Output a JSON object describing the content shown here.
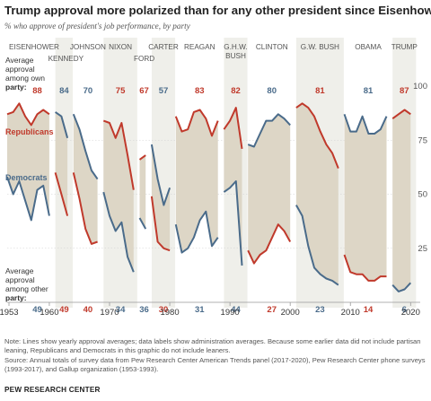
{
  "title": "Trump approval more polarized than for any other president since Eisenhower",
  "subtitle": "% who approve of president's job performance, by party",
  "legend": {
    "own_party_label": [
      "Average",
      "approval",
      "among own",
      "party:"
    ],
    "other_party_label": [
      "Average",
      "approval",
      "among other",
      "party:"
    ],
    "republicans": "Republicans",
    "democrats": "Democrats"
  },
  "colors": {
    "republicans": "#c0392b",
    "democrats": "#4a6b8a",
    "fill": "#ddd6c6",
    "band": "#efefea"
  },
  "chart_data": {
    "type": "line",
    "xlim": [
      1953,
      2020
    ],
    "ylim": [
      0,
      100
    ],
    "y_ticks": [
      0,
      25,
      50,
      75,
      100
    ],
    "x_ticks": [
      1953,
      1960,
      1970,
      1980,
      1990,
      2000,
      2010,
      2020
    ],
    "series_names": [
      "Republicans",
      "Democrats"
    ],
    "presidents": [
      {
        "name": "EISENHOWER",
        "start": 1953,
        "end": 1960.9,
        "band": false,
        "own_avg": "88",
        "other_avg": "49",
        "own_party": "R",
        "rep": [
          [
            1953,
            87
          ],
          [
            1954,
            88
          ],
          [
            1955,
            92
          ],
          [
            1956,
            86
          ],
          [
            1957,
            82
          ],
          [
            1958,
            87
          ],
          [
            1959,
            89
          ],
          [
            1960,
            87
          ]
        ],
        "dem": [
          [
            1953,
            58
          ],
          [
            1954,
            50
          ],
          [
            1955,
            56
          ],
          [
            1956,
            47
          ],
          [
            1957,
            38
          ],
          [
            1958,
            52
          ],
          [
            1959,
            54
          ],
          [
            1960,
            40
          ]
        ]
      },
      {
        "name": "KENNEDY",
        "start": 1961,
        "end": 1963.9,
        "band": true,
        "own_avg": "84",
        "other_avg": "49",
        "own_party": "D",
        "rep": [
          [
            1961,
            60
          ],
          [
            1962,
            50
          ],
          [
            1963,
            40
          ]
        ],
        "dem": [
          [
            1961,
            88
          ],
          [
            1962,
            86
          ],
          [
            1963,
            76
          ]
        ]
      },
      {
        "name": "JOHNSON",
        "start": 1963.9,
        "end": 1968.9,
        "band": false,
        "own_avg": "70",
        "other_avg": "40",
        "own_party": "D",
        "rep": [
          [
            1964,
            60
          ],
          [
            1965,
            48
          ],
          [
            1966,
            34
          ],
          [
            1967,
            27
          ],
          [
            1968,
            28
          ]
        ],
        "dem": [
          [
            1964,
            87
          ],
          [
            1965,
            80
          ],
          [
            1966,
            70
          ],
          [
            1967,
            61
          ],
          [
            1968,
            57
          ]
        ]
      },
      {
        "name": "NIXON",
        "start": 1969,
        "end": 1974.6,
        "band": true,
        "own_avg": "75",
        "other_avg": "34",
        "own_party": "R",
        "rep": [
          [
            1969,
            84
          ],
          [
            1970,
            83
          ],
          [
            1971,
            76
          ],
          [
            1972,
            83
          ],
          [
            1973,
            68
          ],
          [
            1974,
            52
          ]
        ],
        "dem": [
          [
            1969,
            51
          ],
          [
            1970,
            40
          ],
          [
            1971,
            33
          ],
          [
            1972,
            37
          ],
          [
            1973,
            21
          ],
          [
            1974,
            14
          ]
        ]
      },
      {
        "name": "FORD",
        "start": 1974.6,
        "end": 1976.9,
        "band": false,
        "own_avg": "67",
        "other_avg": "36",
        "own_party": "R",
        "rep": [
          [
            1975,
            66
          ],
          [
            1976,
            68
          ]
        ],
        "dem": [
          [
            1975,
            39
          ],
          [
            1976,
            34
          ]
        ]
      },
      {
        "name": "CARTER",
        "start": 1977,
        "end": 1980.9,
        "band": true,
        "own_avg": "57",
        "other_avg": "30",
        "own_party": "D",
        "rep": [
          [
            1977,
            49
          ],
          [
            1978,
            28
          ],
          [
            1979,
            25
          ],
          [
            1980,
            24
          ]
        ],
        "dem": [
          [
            1977,
            73
          ],
          [
            1978,
            57
          ],
          [
            1979,
            45
          ],
          [
            1980,
            53
          ]
        ]
      },
      {
        "name": "REAGAN",
        "start": 1981,
        "end": 1988.9,
        "band": false,
        "own_avg": "83",
        "other_avg": "31",
        "own_party": "R",
        "rep": [
          [
            1981,
            86
          ],
          [
            1982,
            79
          ],
          [
            1983,
            80
          ],
          [
            1984,
            88
          ],
          [
            1985,
            89
          ],
          [
            1986,
            85
          ],
          [
            1987,
            77
          ],
          [
            1988,
            84
          ]
        ],
        "dem": [
          [
            1981,
            36
          ],
          [
            1982,
            23
          ],
          [
            1983,
            25
          ],
          [
            1984,
            30
          ],
          [
            1985,
            38
          ],
          [
            1986,
            42
          ],
          [
            1987,
            26
          ],
          [
            1988,
            30
          ]
        ]
      },
      {
        "name": "G.H.W. BUSH",
        "start": 1989,
        "end": 1992.9,
        "band": true,
        "own_avg": "82",
        "other_avg": "44",
        "own_party": "R",
        "rep": [
          [
            1989,
            80
          ],
          [
            1990,
            84
          ],
          [
            1991,
            90
          ],
          [
            1992,
            71
          ]
        ],
        "dem": [
          [
            1989,
            51
          ],
          [
            1990,
            53
          ],
          [
            1991,
            56
          ],
          [
            1992,
            17
          ]
        ]
      },
      {
        "name": "CLINTON",
        "start": 1993,
        "end": 2000.9,
        "band": false,
        "own_avg": "80",
        "other_avg": "27",
        "own_party": "D",
        "rep": [
          [
            1993,
            24
          ],
          [
            1994,
            18
          ],
          [
            1995,
            22
          ],
          [
            1996,
            24
          ],
          [
            1997,
            30
          ],
          [
            1998,
            36
          ],
          [
            1999,
            33
          ],
          [
            2000,
            28
          ]
        ],
        "dem": [
          [
            1993,
            73
          ],
          [
            1994,
            72
          ],
          [
            1995,
            78
          ],
          [
            1996,
            84
          ],
          [
            1997,
            84
          ],
          [
            1998,
            87
          ],
          [
            1999,
            85
          ],
          [
            2000,
            82
          ]
        ]
      },
      {
        "name": "G.W. BUSH",
        "start": 2001,
        "end": 2008.9,
        "band": true,
        "own_avg": "81",
        "other_avg": "23",
        "own_party": "R",
        "rep": [
          [
            2001,
            90
          ],
          [
            2002,
            92
          ],
          [
            2003,
            90
          ],
          [
            2004,
            86
          ],
          [
            2005,
            79
          ],
          [
            2006,
            73
          ],
          [
            2007,
            69
          ],
          [
            2008,
            62
          ]
        ],
        "dem": [
          [
            2001,
            45
          ],
          [
            2002,
            40
          ],
          [
            2003,
            26
          ],
          [
            2004,
            16
          ],
          [
            2005,
            13
          ],
          [
            2006,
            11
          ],
          [
            2007,
            10
          ],
          [
            2008,
            8
          ]
        ]
      },
      {
        "name": "OBAMA",
        "start": 2009,
        "end": 2016.9,
        "band": false,
        "own_avg": "81",
        "other_avg": "14",
        "own_party": "D",
        "rep": [
          [
            2009,
            22
          ],
          [
            2010,
            14
          ],
          [
            2011,
            13
          ],
          [
            2012,
            13
          ],
          [
            2013,
            10
          ],
          [
            2014,
            10
          ],
          [
            2015,
            12
          ],
          [
            2016,
            12
          ]
        ],
        "dem": [
          [
            2009,
            87
          ],
          [
            2010,
            79
          ],
          [
            2011,
            79
          ],
          [
            2012,
            86
          ],
          [
            2013,
            78
          ],
          [
            2014,
            78
          ],
          [
            2015,
            80
          ],
          [
            2016,
            86
          ]
        ]
      },
      {
        "name": "TRUMP",
        "start": 2017,
        "end": 2020.9,
        "band": true,
        "own_avg": "87",
        "other_avg": "6",
        "own_party": "R",
        "rep": [
          [
            2017,
            85
          ],
          [
            2018,
            87
          ],
          [
            2019,
            89
          ],
          [
            2020,
            87
          ]
        ],
        "dem": [
          [
            2017,
            8
          ],
          [
            2018,
            5
          ],
          [
            2019,
            6
          ],
          [
            2020,
            9
          ]
        ]
      }
    ]
  },
  "note_lines": [
    "Note: Lines show yearly approval averages; data labels show administration averages. Because some earlier data did not include partisan",
    "leaning, Republicans and Democrats in this graphic do not include leaners.",
    "Source: Annual totals of survey data from Pew Research Center American Trends panel (2017-2020), Pew Research Center phone surveys",
    "(1993-2017), and Gallup organization (1953-1993)."
  ],
  "brand": "PEW RESEARCH CENTER"
}
